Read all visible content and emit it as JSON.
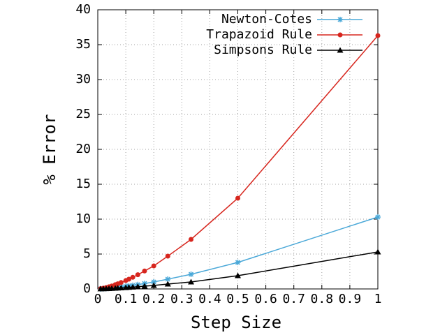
{
  "chart_data": {
    "type": "line",
    "xlabel": "Step Size",
    "ylabel": "% Error",
    "xlim": [
      0,
      1
    ],
    "xticks": [
      0,
      0.1,
      0.2,
      0.3,
      0.4,
      0.5,
      0.6,
      0.7,
      0.8,
      0.9,
      1
    ],
    "ylim": [
      0,
      40
    ],
    "yticks": [
      0,
      5,
      10,
      15,
      20,
      25,
      30,
      35,
      40
    ],
    "grid": true,
    "legend": "top right",
    "x": [
      1,
      0.5,
      0.333,
      0.25,
      0.2,
      0.167,
      0.143,
      0.125,
      0.111,
      0.1,
      0.0833,
      0.0714,
      0.0625,
      0.05,
      0.04,
      0.03,
      0.02,
      0.01
    ],
    "series": [
      {
        "name": "Newton-Cotes",
        "color": "#4aa8d8",
        "marker": "star",
        "values": [
          10.3,
          3.8,
          2.1,
          1.4,
          1.0,
          0.78,
          0.62,
          0.51,
          0.43,
          0.37,
          0.29,
          0.23,
          0.19,
          0.14,
          0.1,
          0.07,
          0.04,
          0.01
        ]
      },
      {
        "name": "Trapazoid Rule",
        "color": "#d7261e",
        "marker": "circle",
        "values": [
          36.3,
          13.0,
          7.1,
          4.7,
          3.3,
          2.57,
          2.04,
          1.67,
          1.4,
          1.2,
          0.92,
          0.74,
          0.61,
          0.43,
          0.31,
          0.2,
          0.11,
          0.04
        ]
      },
      {
        "name": "Simpsons Rule",
        "color": "#000000",
        "marker": "triangle",
        "values": [
          5.3,
          1.9,
          1.0,
          0.7,
          0.5,
          0.4,
          0.32,
          0.26,
          0.22,
          0.19,
          0.15,
          0.12,
          0.1,
          0.07,
          0.05,
          0.035,
          0.02,
          0.01
        ]
      }
    ]
  }
}
